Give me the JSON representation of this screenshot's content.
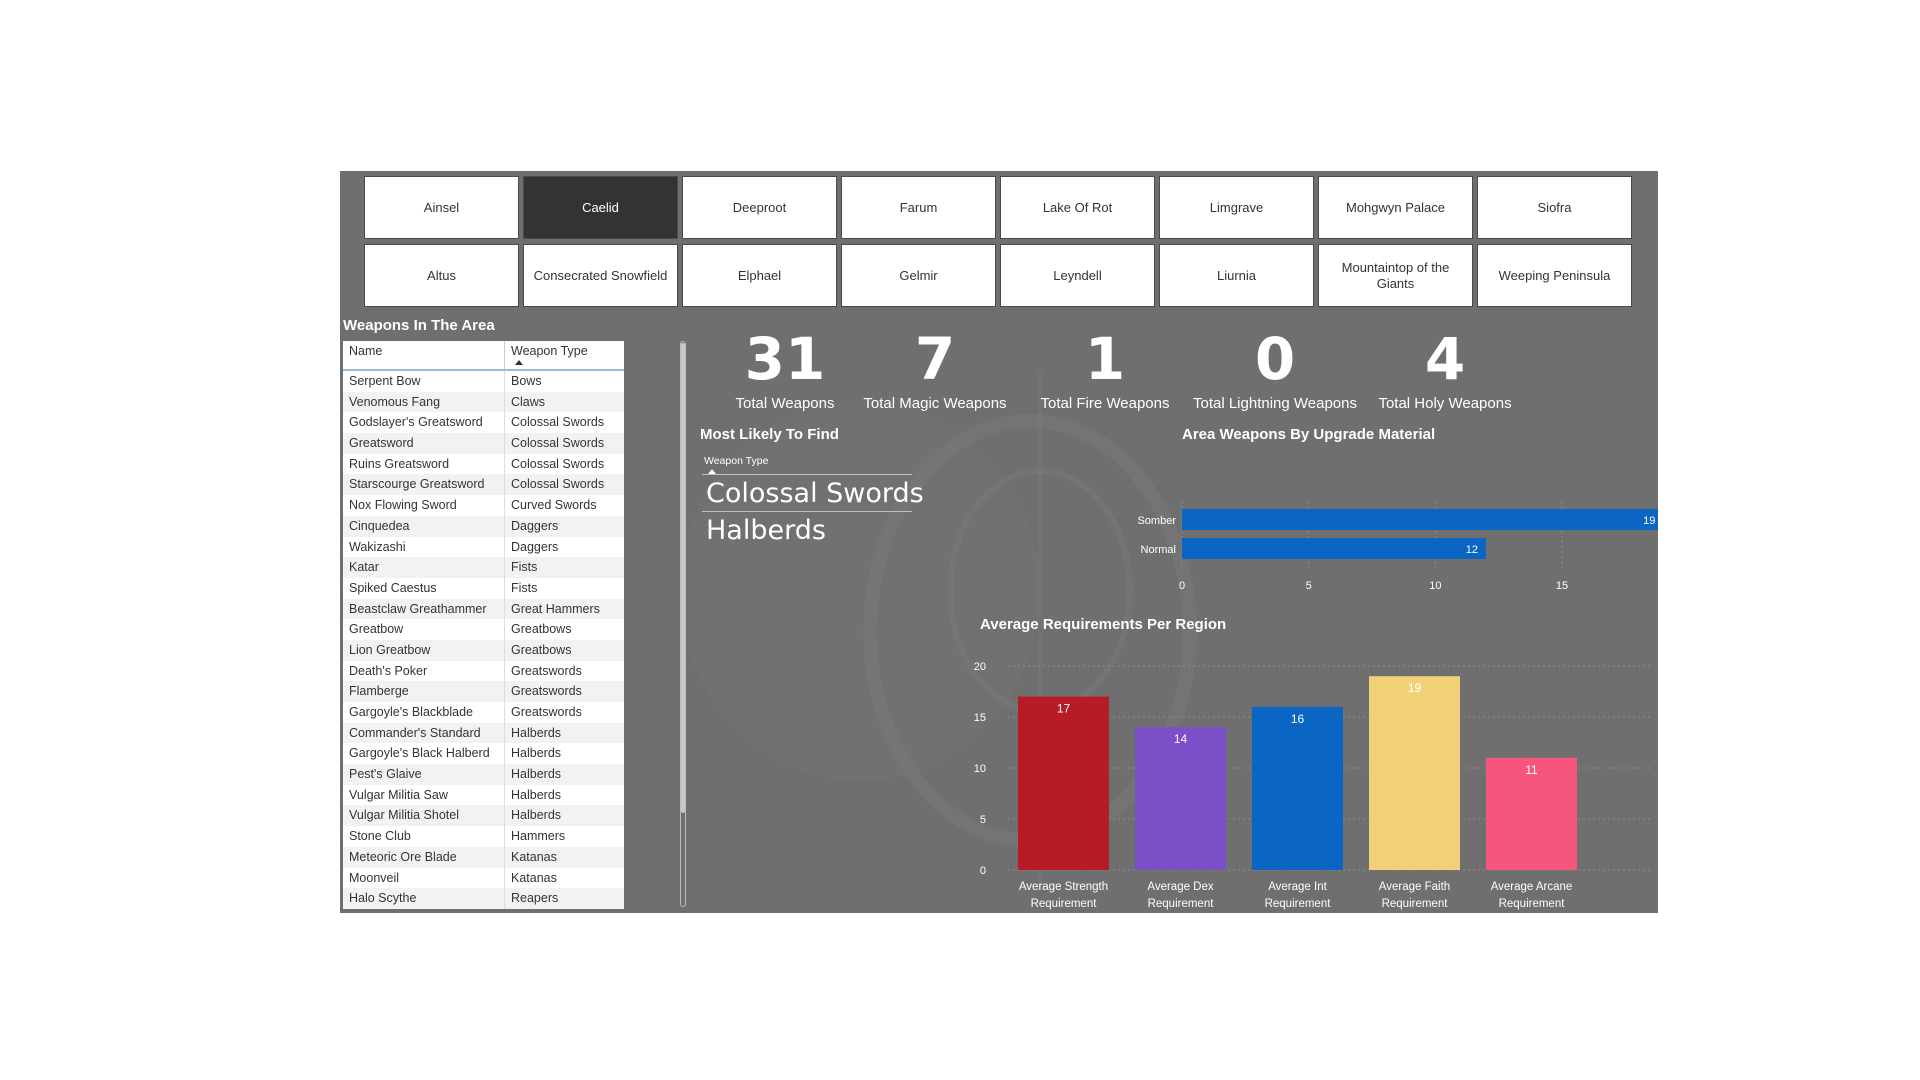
{
  "regions_row1": [
    "Ainsel",
    "Caelid",
    "Deeproot",
    "Farum",
    "Lake Of Rot",
    "Limgrave",
    "Mohgwyn Palace",
    "Siofra"
  ],
  "regions_row2": [
    "Altus",
    "Consecrated Snowfield",
    "Elphael",
    "Gelmir",
    "Leyndell",
    "Liurnia",
    "Mountaintop of the Giants",
    "Weeping Peninsula"
  ],
  "selected_region": "Caelid",
  "weapons_table": {
    "title": "Weapons In The Area",
    "columns": [
      "Name",
      "Weapon Type"
    ],
    "rows": [
      [
        "Serpent Bow",
        "Bows"
      ],
      [
        "Venomous Fang",
        "Claws"
      ],
      [
        "Godslayer's Greatsword",
        "Colossal Swords"
      ],
      [
        "Greatsword",
        "Colossal Swords"
      ],
      [
        "Ruins Greatsword",
        "Colossal Swords"
      ],
      [
        "Starscourge Greatsword",
        "Colossal Swords"
      ],
      [
        "Nox Flowing Sword",
        "Curved Swords"
      ],
      [
        "Cinquedea",
        "Daggers"
      ],
      [
        "Wakizashi",
        "Daggers"
      ],
      [
        "Katar",
        "Fists"
      ],
      [
        "Spiked Caestus",
        "Fists"
      ],
      [
        "Beastclaw Greathammer",
        "Great Hammers"
      ],
      [
        "Greatbow",
        "Greatbows"
      ],
      [
        "Lion Greatbow",
        "Greatbows"
      ],
      [
        "Death's Poker",
        "Greatswords"
      ],
      [
        "Flamberge",
        "Greatswords"
      ],
      [
        "Gargoyle's Blackblade",
        "Greatswords"
      ],
      [
        "Commander's Standard",
        "Halberds"
      ],
      [
        "Gargoyle's Black Halberd",
        "Halberds"
      ],
      [
        "Pest's Glaive",
        "Halberds"
      ],
      [
        "Vulgar Militia Saw",
        "Halberds"
      ],
      [
        "Vulgar Militia Shotel",
        "Halberds"
      ],
      [
        "Stone Club",
        "Hammers"
      ],
      [
        "Meteoric Ore Blade",
        "Katanas"
      ],
      [
        "Moonveil",
        "Katanas"
      ],
      [
        "Halo Scythe",
        "Reapers"
      ]
    ]
  },
  "kpis": [
    {
      "value": "31",
      "label": "Total Weapons"
    },
    {
      "value": "7",
      "label": "Total Magic Weapons"
    },
    {
      "value": "1",
      "label": "Total Fire Weapons"
    },
    {
      "value": "0",
      "label": "Total Lightning Weapons"
    },
    {
      "value": "4",
      "label": "Total Holy Weapons"
    }
  ],
  "most_likely": {
    "title": "Most Likely To Find",
    "column_header": "Weapon Type",
    "items": [
      "Colossal Swords",
      "Halberds"
    ]
  },
  "chart_data": [
    {
      "type": "bar",
      "orientation": "horizontal",
      "title": "Area Weapons By Upgrade Material",
      "categories": [
        "Somber",
        "Normal"
      ],
      "values": [
        19,
        12
      ],
      "xlim": [
        0,
        20
      ],
      "ticks": [
        0,
        5,
        10,
        15
      ],
      "color": "#0a66c2"
    },
    {
      "type": "bar",
      "title": "Average Requirements Per Region",
      "categories": [
        "Average Strength Requirement",
        "Average Dex Requirement",
        "Average Int Requirement",
        "Average Faith Requirement",
        "Average Arcane Requirement"
      ],
      "values": [
        17,
        14,
        16,
        19,
        11
      ],
      "colors": [
        "#b71c24",
        "#7b4fc7",
        "#0a66c2",
        "#f2d077",
        "#f7567c"
      ],
      "ylim": [
        0,
        20
      ],
      "ticks": [
        0,
        5,
        10,
        15,
        20
      ]
    }
  ]
}
